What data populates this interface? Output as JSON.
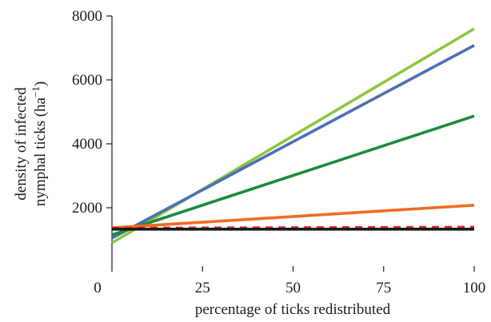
{
  "chart_data": {
    "type": "line",
    "xlabel": "percentage of ticks redistributed",
    "ylabel_line1": "density of infected",
    "ylabel_line2": "nymphal ticks (ha",
    "ylabel_sup": "−1",
    "ylabel_close": ")",
    "xlim": [
      0,
      100
    ],
    "ylim": [
      0,
      8000
    ],
    "x_ticks": [
      "0",
      "25",
      "50",
      "75",
      "100"
    ],
    "y_ticks": [
      "2000",
      "4000",
      "6000",
      "8000"
    ],
    "y_tick_values": [
      2000,
      4000,
      6000,
      8000
    ],
    "x_tick_values": [
      0,
      25,
      50,
      75,
      100
    ],
    "series": [
      {
        "color": "#8dc63f",
        "dash": false,
        "x": [
          0,
          100
        ],
        "values": [
          900,
          7600
        ]
      },
      {
        "color": "#4a6fb5",
        "dash": false,
        "x": [
          0,
          100
        ],
        "values": [
          1050,
          7080
        ]
      },
      {
        "color": "#1a8a3c",
        "dash": false,
        "x": [
          0,
          100
        ],
        "values": [
          1150,
          4870
        ]
      },
      {
        "color": "#f26b21",
        "dash": false,
        "x": [
          0,
          100
        ],
        "values": [
          1370,
          2080
        ]
      },
      {
        "color": "#e8262a",
        "dash": true,
        "x": [
          0,
          100
        ],
        "values": [
          1360,
          1390
        ]
      },
      {
        "color": "#1a1a1a",
        "dash": false,
        "x": [
          0,
          100
        ],
        "values": [
          1330,
          1330
        ]
      }
    ]
  }
}
